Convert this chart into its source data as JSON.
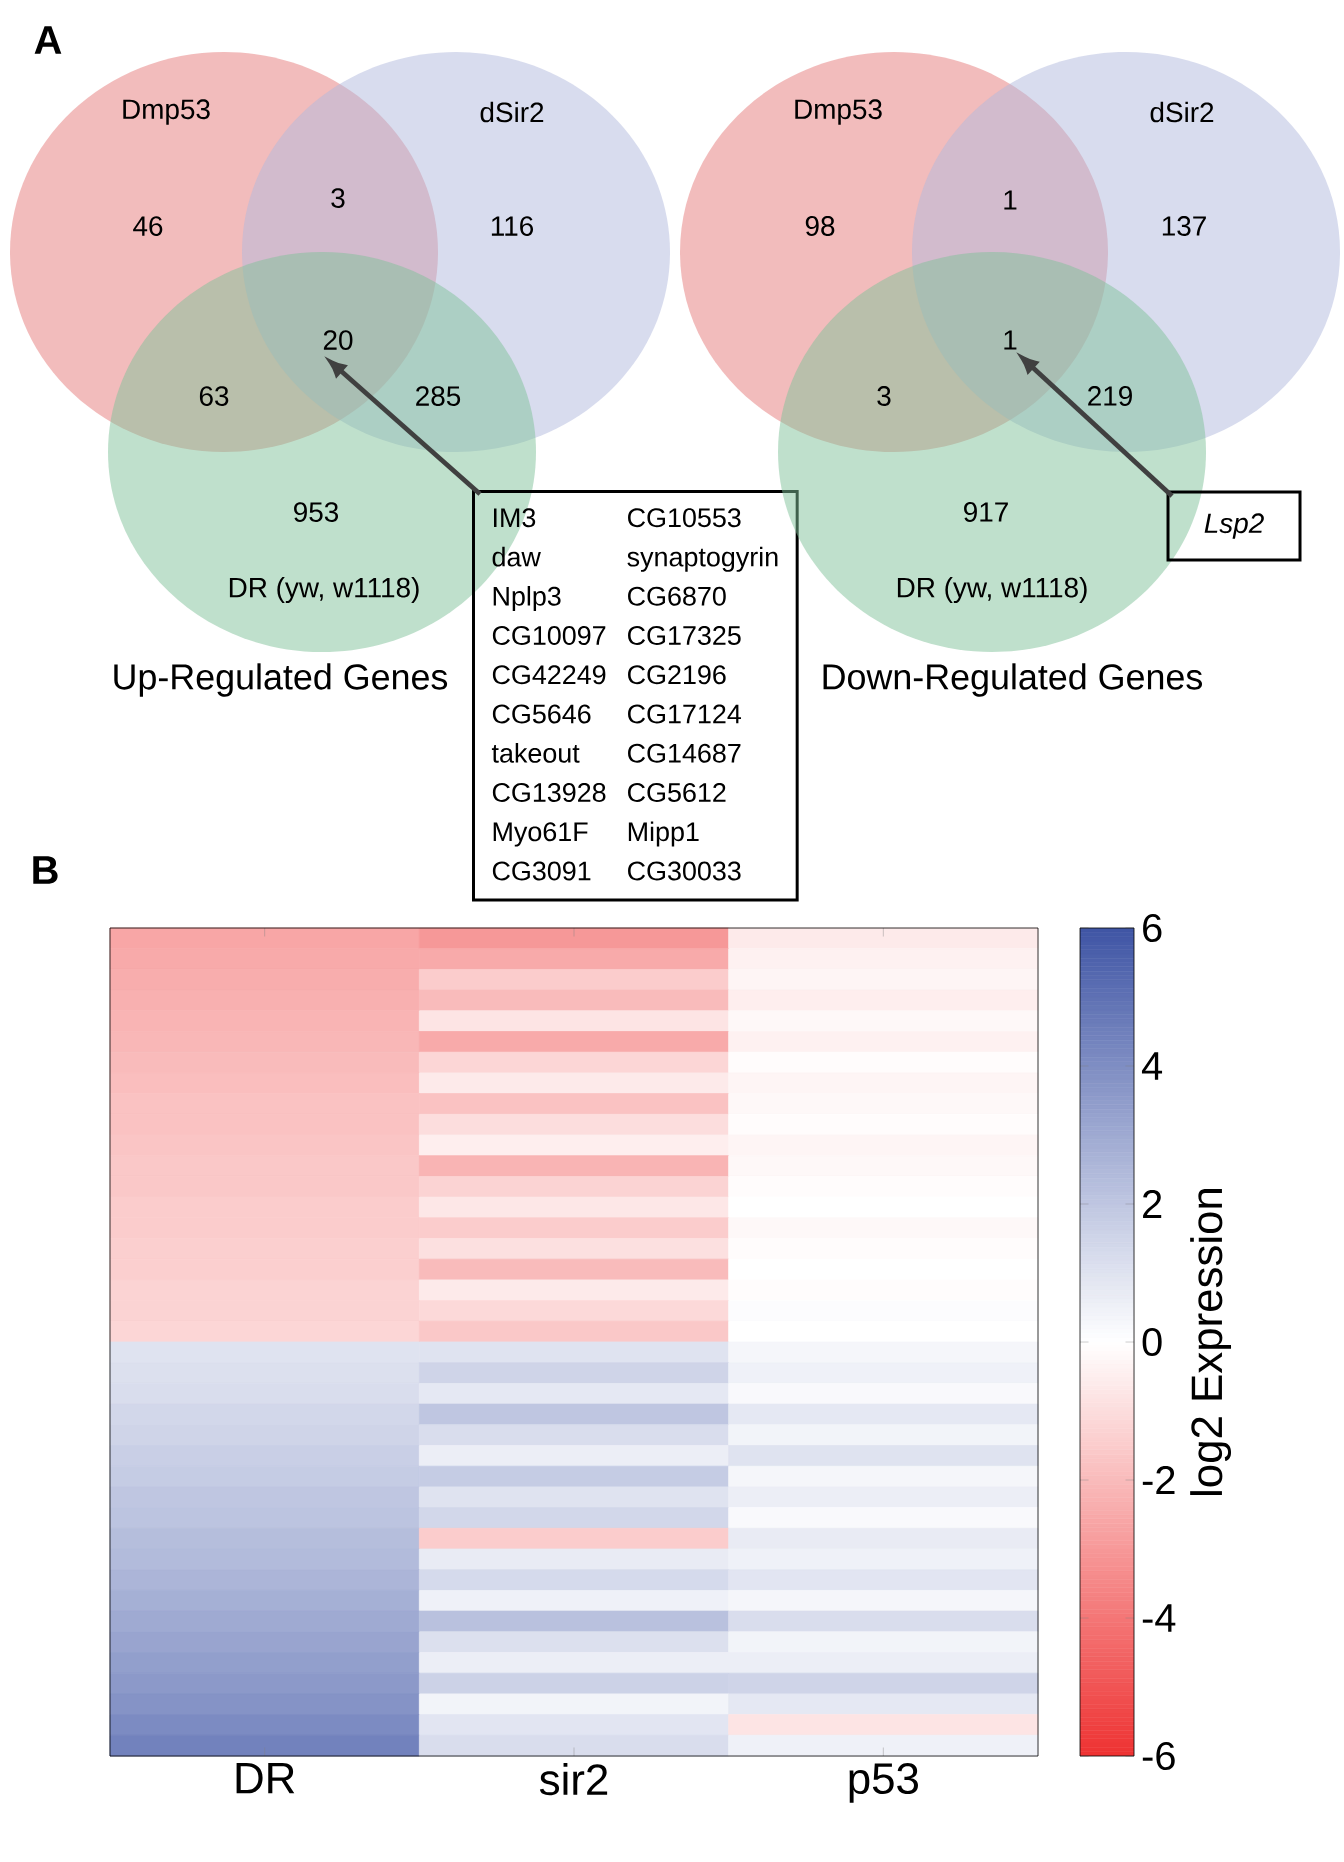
{
  "chart_data": [
    {
      "type": "other",
      "title": "Up-Regulated Genes",
      "annotations": [
        "A",
        "Dmp53",
        "dSir2",
        "DR (yw, w1118)",
        "46",
        "3",
        "116",
        "63",
        "20",
        "285",
        "953",
        "IM3",
        "CG10553",
        "daw",
        "synaptogyrin",
        "Nplp3",
        "CG6870",
        "CG10097",
        "CG17325",
        "CG42249",
        "CG2196",
        "CG5646",
        "CG17124",
        "takeout",
        "CG14687",
        "CG13928",
        "CG5612",
        "Myo61F",
        "Mipp1",
        "CG3091",
        "CG30033"
      ]
    },
    {
      "type": "other",
      "title": "Down-Regulated Genes",
      "annotations": [
        "Dmp53",
        "dSir2",
        "DR (yw, w1118)",
        "98",
        "1",
        "137",
        "3",
        "1",
        "219",
        "917",
        "Lsp2"
      ]
    },
    {
      "type": "heatmap",
      "categories": [
        "DR",
        "sir2",
        "p53"
      ],
      "clabel": "log2 Expression",
      "clim": [
        -6,
        6
      ],
      "cticks": [
        -6,
        -4,
        -2,
        0,
        2,
        4,
        6
      ],
      "annotations": [
        "B"
      ],
      "y_categories": [
        null,
        null,
        null,
        null,
        null,
        null,
        null,
        null,
        null,
        null,
        null,
        null,
        null,
        null,
        null,
        null,
        null,
        null,
        null,
        null,
        null,
        null,
        null,
        null,
        null,
        null,
        null,
        null,
        null,
        null,
        null,
        null,
        null,
        null,
        null,
        null,
        null,
        null,
        null,
        null
      ],
      "cells": [
        [
          -2.6,
          -3,
          -0.6
        ],
        [
          -2.5,
          -2.5,
          -0.4
        ],
        [
          -2.4,
          -1.5,
          -0.3
        ],
        [
          -2.3,
          -2,
          -0.5
        ],
        [
          -2.2,
          -0.8,
          -0.2
        ],
        [
          -2.1,
          -2.5,
          -0.4
        ],
        [
          -2.0,
          -1.2,
          -0.1
        ],
        [
          -1.9,
          -0.6,
          -0.3
        ],
        [
          -1.8,
          -1.8,
          -0.2
        ],
        [
          -1.8,
          -1,
          -0.1
        ],
        [
          -1.7,
          -0.5,
          -0.3
        ],
        [
          -1.6,
          -2.2,
          -0.2
        ],
        [
          -1.6,
          -1.3,
          -0.1
        ],
        [
          -1.5,
          -0.7,
          0
        ],
        [
          -1.5,
          -1.5,
          -0.2
        ],
        [
          -1.4,
          -0.9,
          -0.1
        ],
        [
          -1.4,
          -2,
          0
        ],
        [
          -1.3,
          -0.6,
          -0.1
        ],
        [
          -1.3,
          -1.1,
          0.1
        ],
        [
          -1.2,
          -1.6,
          0
        ],
        [
          1.0,
          1,
          0.3
        ],
        [
          1.1,
          1.5,
          0.5
        ],
        [
          1.2,
          0.8,
          0.2
        ],
        [
          1.4,
          2,
          0.8
        ],
        [
          1.5,
          1.2,
          0.4
        ],
        [
          1.7,
          0.6,
          1
        ],
        [
          1.8,
          1.8,
          0.3
        ],
        [
          2.0,
          1,
          0.6
        ],
        [
          2.1,
          1.4,
          0.2
        ],
        [
          2.3,
          -1.5,
          0.7
        ],
        [
          2.4,
          0.7,
          0.5
        ],
        [
          2.6,
          1.3,
          0.9
        ],
        [
          2.8,
          0.5,
          0.3
        ],
        [
          3.0,
          2.2,
          1.2
        ],
        [
          3.2,
          1.1,
          0.4
        ],
        [
          3.4,
          0.6,
          0.6
        ],
        [
          3.6,
          1.6,
          1.5
        ],
        [
          3.8,
          0.4,
          0.8
        ],
        [
          4.1,
          0.9,
          -0.8
        ],
        [
          4.4,
          1.2,
          0.5
        ]
      ]
    }
  ]
}
